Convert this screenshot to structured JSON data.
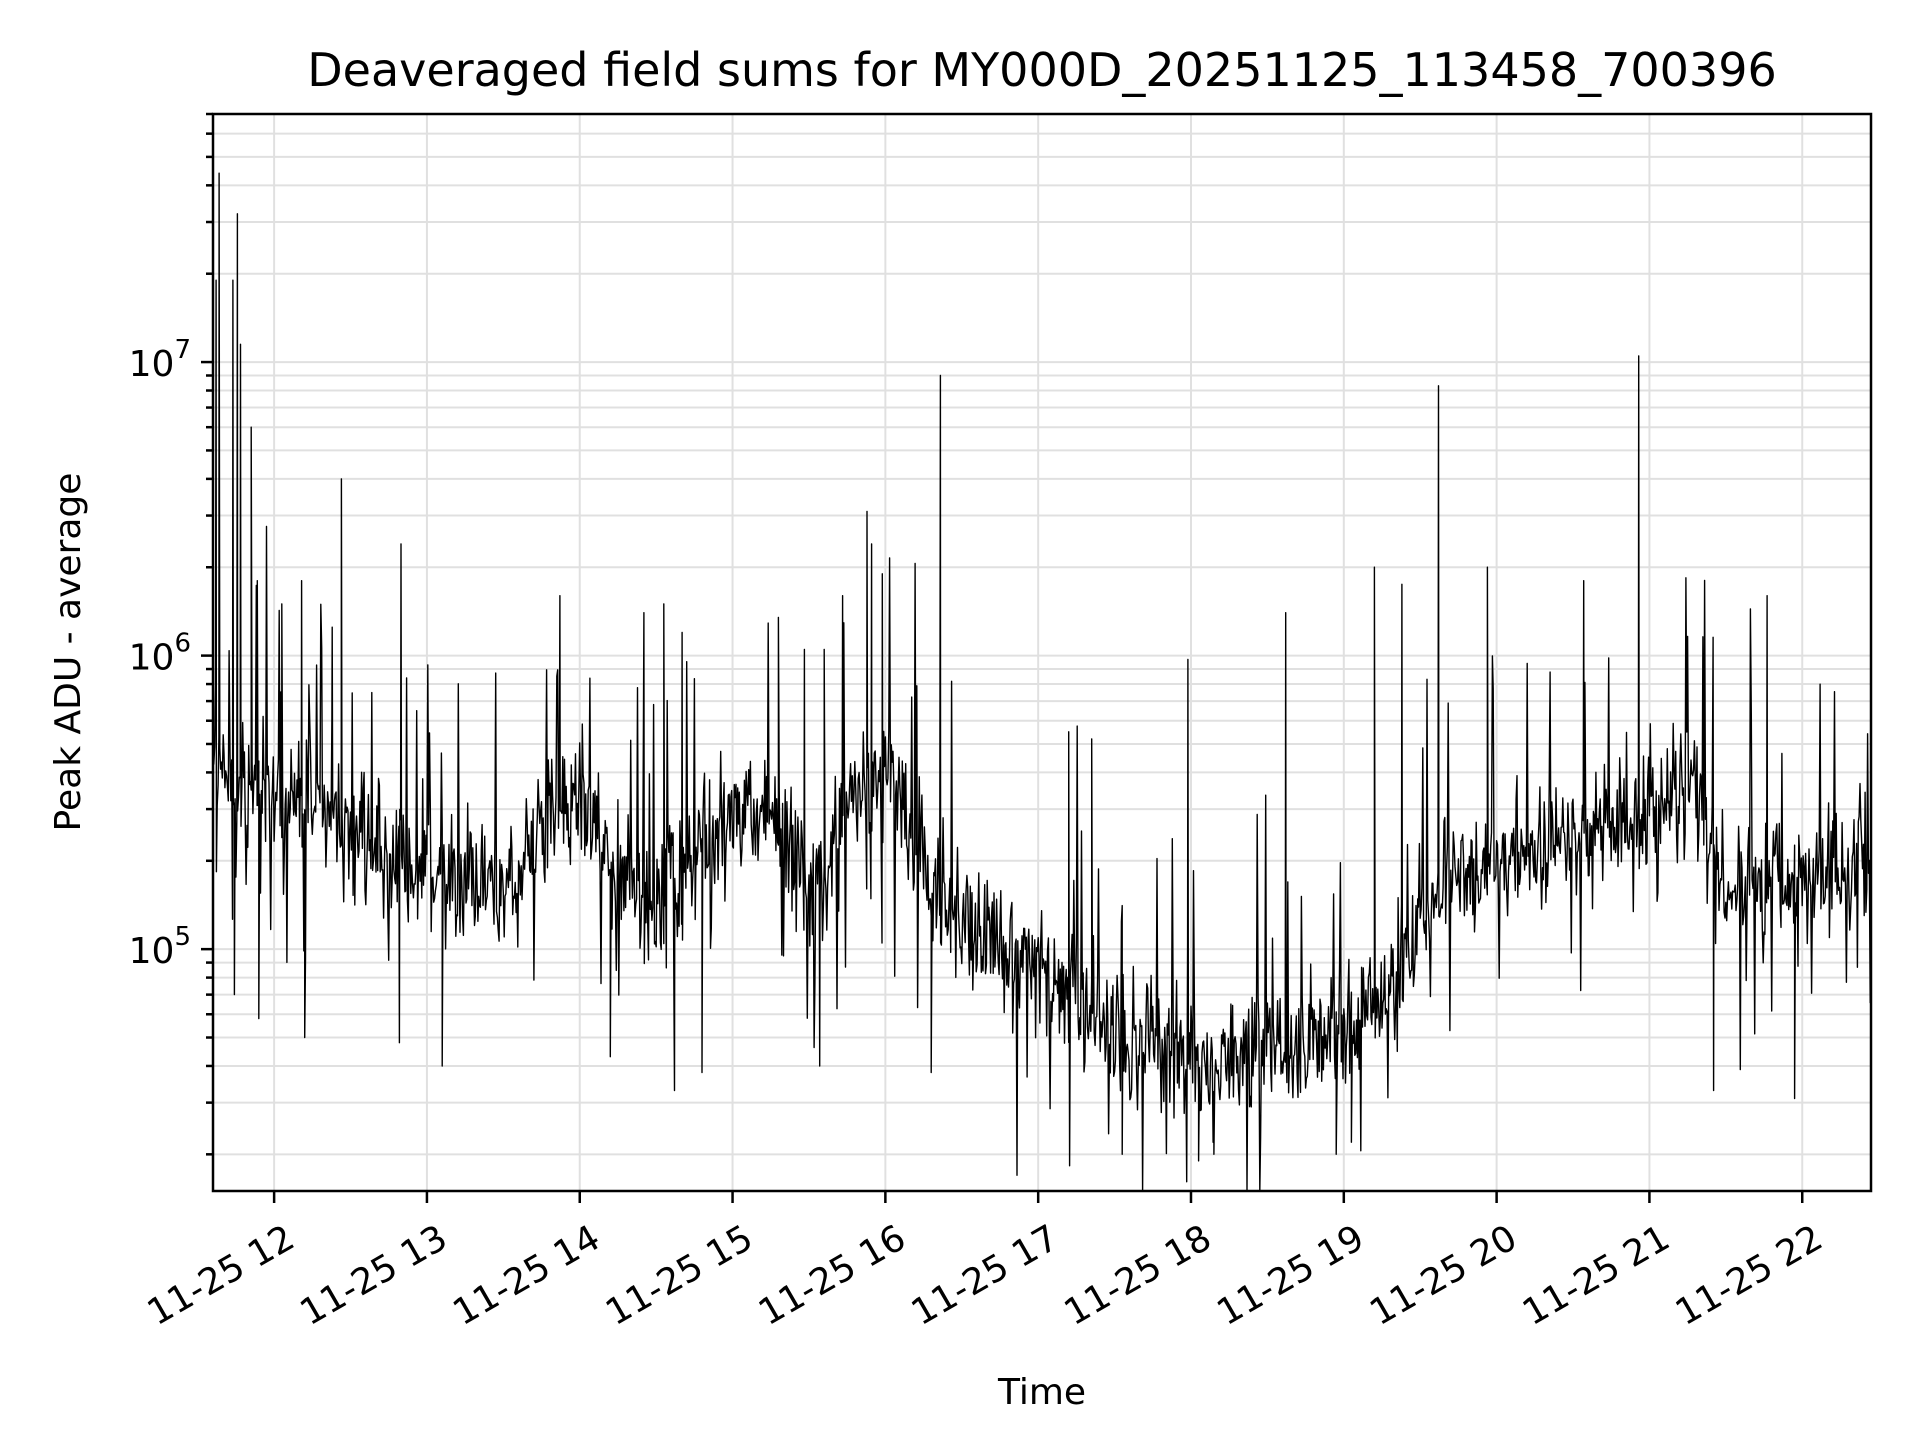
{
  "chart_data": {
    "type": "line",
    "title": "Deaveraged field sums for MY000D_20251125_113458_700396",
    "xlabel": "Time",
    "ylabel": "Peak ADU - average",
    "yscale": "log",
    "grid": true,
    "xlim_hours": [
      11.6,
      22.45
    ],
    "ylim": [
      15000,
      70000000
    ],
    "x_ticks": [
      {
        "hour": 12,
        "label": "11-25 12"
      },
      {
        "hour": 13,
        "label": "11-25 13"
      },
      {
        "hour": 14,
        "label": "11-25 14"
      },
      {
        "hour": 15,
        "label": "11-25 15"
      },
      {
        "hour": 16,
        "label": "11-25 16"
      },
      {
        "hour": 17,
        "label": "11-25 17"
      },
      {
        "hour": 18,
        "label": "11-25 18"
      },
      {
        "hour": 19,
        "label": "11-25 19"
      },
      {
        "hour": 20,
        "label": "11-25 20"
      },
      {
        "hour": 21,
        "label": "11-25 21"
      },
      {
        "hour": 22,
        "label": "11-25 22"
      }
    ],
    "y_ticks": [
      {
        "value": 100000,
        "base": "10",
        "exp": "5"
      },
      {
        "value": 1000000,
        "base": "10",
        "exp": "6"
      },
      {
        "value": 10000000,
        "base": "10",
        "exp": "7"
      }
    ],
    "series": [
      {
        "name": "field sums",
        "color": "#000000",
        "baseline_profile": [
          [
            11.6,
            450000
          ],
          [
            11.8,
            400000
          ],
          [
            12.0,
            330000
          ],
          [
            12.3,
            300000
          ],
          [
            12.6,
            220000
          ],
          [
            13.0,
            190000
          ],
          [
            13.3,
            160000
          ],
          [
            13.6,
            180000
          ],
          [
            13.8,
            260000
          ],
          [
            14.0,
            340000
          ],
          [
            14.2,
            180000
          ],
          [
            14.5,
            140000
          ],
          [
            14.8,
            220000
          ],
          [
            15.0,
            300000
          ],
          [
            15.3,
            250000
          ],
          [
            15.5,
            160000
          ],
          [
            15.8,
            320000
          ],
          [
            16.0,
            420000
          ],
          [
            16.1,
            300000
          ],
          [
            16.3,
            160000
          ],
          [
            16.6,
            120000
          ],
          [
            17.0,
            85000
          ],
          [
            17.3,
            65000
          ],
          [
            17.6,
            50000
          ],
          [
            18.0,
            45000
          ],
          [
            18.4,
            45000
          ],
          [
            18.7,
            47000
          ],
          [
            19.0,
            55000
          ],
          [
            19.3,
            70000
          ],
          [
            19.5,
            140000
          ],
          [
            19.8,
            180000
          ],
          [
            20.0,
            200000
          ],
          [
            20.5,
            220000
          ],
          [
            21.0,
            300000
          ],
          [
            21.3,
            380000
          ],
          [
            21.5,
            150000
          ],
          [
            21.8,
            180000
          ],
          [
            22.0,
            170000
          ],
          [
            22.45,
            220000
          ]
        ],
        "noise_log10": 0.28,
        "points_per_hour": 180,
        "spikes": [
          [
            11.64,
            44000000
          ],
          [
            11.62,
            19000000
          ],
          [
            11.73,
            19000000
          ],
          [
            11.76,
            32000000
          ],
          [
            11.78,
            11500000
          ],
          [
            11.85,
            6000000
          ],
          [
            11.89,
            1800000
          ],
          [
            12.05,
            1500000
          ],
          [
            12.18,
            1800000
          ],
          [
            12.38,
            1250000
          ],
          [
            12.44,
            4000000
          ],
          [
            12.83,
            2400000
          ],
          [
            13.87,
            1600000
          ],
          [
            14.42,
            1400000
          ],
          [
            14.55,
            1500000
          ],
          [
            14.67,
            1200000
          ],
          [
            15.3,
            1350000
          ],
          [
            15.47,
            1050000
          ],
          [
            15.6,
            1050000
          ],
          [
            15.72,
            1600000
          ],
          [
            15.88,
            3100000
          ],
          [
            15.91,
            2400000
          ],
          [
            15.98,
            1900000
          ],
          [
            16.36,
            9000000
          ],
          [
            17.2,
            550000
          ],
          [
            17.35,
            520000
          ],
          [
            17.98,
            970000
          ],
          [
            18.62,
            1400000
          ],
          [
            19.2,
            2000000
          ],
          [
            19.38,
            1750000
          ],
          [
            19.62,
            8300000
          ],
          [
            19.94,
            2000000
          ],
          [
            20.57,
            1800000
          ],
          [
            20.93,
            10500000
          ],
          [
            21.77,
            1600000
          ]
        ],
        "dips": [
          [
            11.74,
            70000
          ],
          [
            11.9,
            58000
          ],
          [
            12.2,
            50000
          ],
          [
            12.82,
            48000
          ],
          [
            13.1,
            40000
          ],
          [
            14.2,
            43000
          ],
          [
            14.62,
            33000
          ],
          [
            14.8,
            38000
          ],
          [
            15.57,
            40000
          ],
          [
            16.3,
            38000
          ],
          [
            17.55,
            20000
          ],
          [
            18.05,
            19000
          ],
          [
            18.15,
            20000
          ],
          [
            18.95,
            20000
          ],
          [
            19.05,
            22000
          ],
          [
            21.42,
            33000
          ],
          [
            21.95,
            31000
          ]
        ]
      }
    ]
  }
}
